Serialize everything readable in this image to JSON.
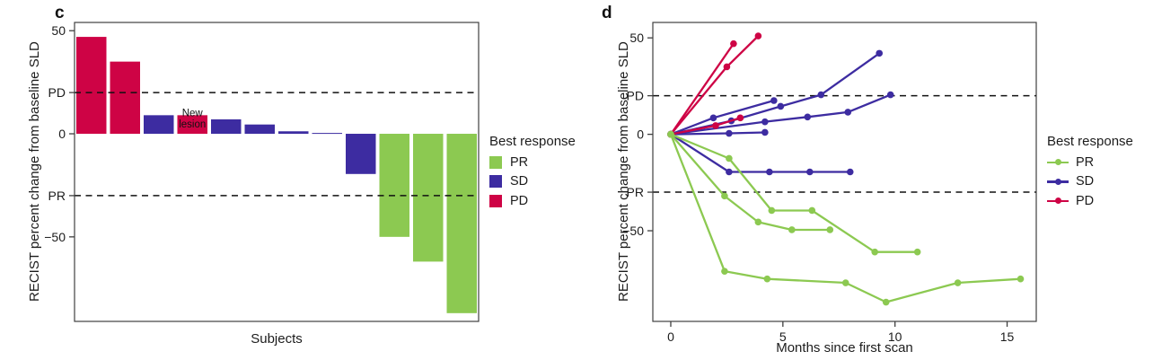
{
  "figure": {
    "panels": [
      {
        "id": "c",
        "label": "c",
        "ylabel": "RECIST percent change from baseline SLD",
        "xlabel": "Subjects",
        "legend": {
          "title": "Best response",
          "entries": [
            {
              "label": "PR",
              "response": "PR"
            },
            {
              "label": "SD",
              "response": "SD"
            },
            {
              "label": "PD",
              "response": "PD"
            }
          ]
        }
      },
      {
        "id": "d",
        "label": "d",
        "ylabel": "RECIST percent change from baseline SLD",
        "xlabel": "Months since first scan",
        "legend": {
          "title": "Best response",
          "entries": [
            {
              "label": "PR",
              "response": "PR"
            },
            {
              "label": "SD",
              "response": "SD"
            },
            {
              "label": "PD",
              "response": "PD"
            }
          ]
        }
      }
    ]
  },
  "colors": {
    "PR": "#8CC951",
    "SD": "#3D2CA1",
    "PD": "#CE0345",
    "axis": "#3f3f3f",
    "refline": "#111111",
    "text": "#1c1c1c"
  },
  "chart_data": [
    {
      "type": "bar",
      "panel": "c",
      "title": "",
      "xlabel": "Subjects",
      "ylabel": "RECIST percent change from baseline SLD",
      "ylim": [
        -91,
        54
      ],
      "grid": false,
      "legend_position": "right",
      "yticks": [
        {
          "v": 50,
          "t": "50"
        },
        {
          "v": 20,
          "t": "PD"
        },
        {
          "v": 0,
          "t": "0"
        },
        {
          "v": -30,
          "t": "PR"
        },
        {
          "v": -50,
          "t": "−50"
        }
      ],
      "reference_lines": [
        {
          "v": 20,
          "meaning": "PD threshold",
          "style": "dashed"
        },
        {
          "v": -30,
          "meaning": "PR threshold",
          "style": "dashed"
        }
      ],
      "bars": [
        {
          "subject": 1,
          "value": 47,
          "response": "PD"
        },
        {
          "subject": 2,
          "value": 35,
          "response": "PD"
        },
        {
          "subject": 3,
          "value": 9,
          "response": "SD"
        },
        {
          "subject": 4,
          "value": 9,
          "response": "PD",
          "annotation": [
            "New",
            "lesion"
          ]
        },
        {
          "subject": 5,
          "value": 7,
          "response": "SD"
        },
        {
          "subject": 6,
          "value": 4.5,
          "response": "SD"
        },
        {
          "subject": 7,
          "value": 1.2,
          "response": "SD"
        },
        {
          "subject": 8,
          "value": 0.4,
          "response": "SD"
        },
        {
          "subject": 9,
          "value": -19.5,
          "response": "SD"
        },
        {
          "subject": 10,
          "value": -50,
          "response": "PR"
        },
        {
          "subject": 11,
          "value": -62,
          "response": "PR"
        },
        {
          "subject": 12,
          "value": -87,
          "response": "PR"
        }
      ]
    },
    {
      "type": "line",
      "panel": "d",
      "title": "",
      "xlabel": "Months since first scan",
      "ylabel": "RECIST percent change from baseline SLD",
      "xlim": [
        -0.8,
        16.3
      ],
      "ylim": [
        -97,
        58
      ],
      "grid": false,
      "legend_position": "right",
      "xticks": [
        {
          "v": 0,
          "t": "0"
        },
        {
          "v": 5,
          "t": "5"
        },
        {
          "v": 10,
          "t": "10"
        },
        {
          "v": 15,
          "t": "15"
        }
      ],
      "yticks": [
        {
          "v": 50,
          "t": "50"
        },
        {
          "v": 20,
          "t": "PD"
        },
        {
          "v": 0,
          "t": "0"
        },
        {
          "v": -30,
          "t": "PR"
        },
        {
          "v": -50,
          "t": "−50"
        }
      ],
      "reference_lines": [
        {
          "v": 20,
          "meaning": "PD threshold",
          "style": "dashed"
        },
        {
          "v": -30,
          "meaning": "PR threshold",
          "style": "dashed"
        }
      ],
      "series": [
        {
          "response": "SD",
          "points": [
            [
              0,
              0
            ],
            [
              2.7,
              7
            ],
            [
              4.9,
              14.5
            ],
            [
              6.7,
              20.5
            ],
            [
              9.3,
              42
            ]
          ]
        },
        {
          "response": "SD",
          "points": [
            [
              0,
              0
            ],
            [
              1.9,
              8.5
            ],
            [
              4.6,
              17.5
            ]
          ]
        },
        {
          "response": "SD",
          "points": [
            [
              0,
              0
            ],
            [
              4.2,
              6.5
            ],
            [
              6.1,
              9
            ],
            [
              7.9,
              11.5
            ],
            [
              9.8,
              20.5
            ]
          ]
        },
        {
          "response": "SD",
          "points": [
            [
              0,
              0
            ],
            [
              2.6,
              0.5
            ],
            [
              4.2,
              1
            ]
          ]
        },
        {
          "response": "SD",
          "points": [
            [
              0,
              0
            ],
            [
              2.6,
              -19.5
            ],
            [
              4.4,
              -19.5
            ],
            [
              6.2,
              -19.5
            ],
            [
              8,
              -19.5
            ]
          ]
        },
        {
          "response": "PD",
          "points": [
            [
              0,
              0
            ],
            [
              2.8,
              47
            ]
          ]
        },
        {
          "response": "PD",
          "points": [
            [
              0,
              0
            ],
            [
              2.5,
              35
            ],
            [
              3.9,
              51
            ]
          ]
        },
        {
          "response": "PD",
          "points": [
            [
              0,
              0
            ],
            [
              2.0,
              4.5
            ],
            [
              3.1,
              8.5
            ]
          ]
        },
        {
          "response": "PR",
          "points": [
            [
              0,
              0
            ],
            [
              2.6,
              -12.5
            ],
            [
              4.5,
              -39.5
            ],
            [
              6.3,
              -39.5
            ],
            [
              9.1,
              -61
            ],
            [
              11,
              -61
            ]
          ]
        },
        {
          "response": "PR",
          "points": [
            [
              0,
              0
            ],
            [
              2.4,
              -32
            ],
            [
              3.9,
              -45.5
            ],
            [
              5.4,
              -49.5
            ],
            [
              7.1,
              -49.5
            ]
          ]
        },
        {
          "response": "PR",
          "points": [
            [
              0,
              0
            ],
            [
              2.4,
              -71
            ],
            [
              4.3,
              -75
            ],
            [
              7.8,
              -77
            ],
            [
              9.6,
              -87
            ],
            [
              12.8,
              -77
            ],
            [
              15.6,
              -75
            ]
          ]
        }
      ]
    }
  ]
}
